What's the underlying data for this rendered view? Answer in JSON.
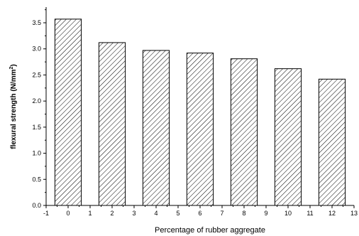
{
  "chart_data": {
    "type": "bar",
    "x": [
      0,
      2,
      4,
      6,
      8,
      10,
      12
    ],
    "values": [
      3.57,
      3.12,
      2.97,
      2.92,
      2.81,
      2.62,
      2.42
    ],
    "xlabel": "Percentage of rubber aggregate",
    "ylabel_main": "flexural strength (N/mm",
    "ylabel_sup": "2",
    "ylabel_close": ")",
    "xlim": [
      -1,
      13
    ],
    "ylim": [
      0,
      3.8
    ],
    "xticks": [
      -1,
      0,
      1,
      2,
      3,
      4,
      5,
      6,
      7,
      8,
      9,
      10,
      11,
      12,
      13
    ],
    "yticks": [
      0.0,
      0.5,
      1.0,
      1.5,
      2.0,
      2.5,
      3.0,
      3.5
    ],
    "grid": false,
    "legend": "none",
    "bar_fill": "diagonal-hatch",
    "colors": {
      "stroke": "#000000",
      "background": "#ffffff"
    }
  }
}
